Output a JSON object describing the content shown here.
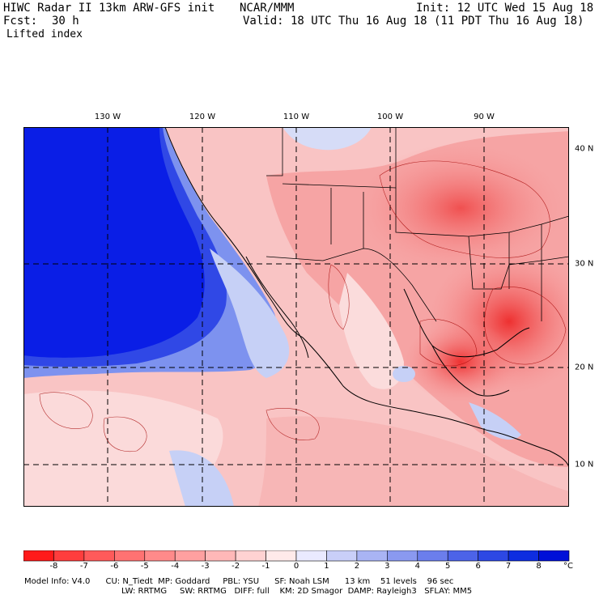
{
  "header": {
    "model_title": "HIWC Radar II 13km ARW-GFS init",
    "org": "NCAR/MMM",
    "init": "Init: 12 UTC Wed 15 Aug 18",
    "fcst_label": "Fcst:",
    "fcst_value": "30 h",
    "valid": "Valid: 18 UTC Thu 16 Aug 18 (11 PDT Thu 16 Aug 18)",
    "field": "Lifted index"
  },
  "map": {
    "lon_labels": [
      "130 W",
      "120 W",
      "110 W",
      "100 W",
      "90 W"
    ],
    "lat_labels": [
      "40 N",
      "30 N",
      "20 N",
      "10 N"
    ],
    "colors": {
      "deep_blue": "#0a1ee6",
      "mid_blue": "#6f86ee",
      "pale_blue": "#c8d2f6",
      "pale_red": "#fbd0d0",
      "mid_red": "#f68a8a",
      "strong_red": "#ef3b3b",
      "border": "#000000"
    }
  },
  "colorbar": {
    "ticks": [
      "-8",
      "-7",
      "-6",
      "-5",
      "-4",
      "-3",
      "-2",
      "-1",
      "0",
      "1",
      "2",
      "3",
      "4",
      "5",
      "6",
      "7",
      "8"
    ],
    "unit": "°C",
    "colors": [
      "#ff1a1a",
      "#ff3d3d",
      "#ff5a5a",
      "#ff7272",
      "#ff8a8a",
      "#ffa0a0",
      "#ffb8b8",
      "#ffd2d2",
      "#ffeaea",
      "#eaeaff",
      "#c9cff8",
      "#a9b4f4",
      "#8a99f0",
      "#6b7eec",
      "#4c63e8",
      "#2d48e4",
      "#0e2de0",
      "#0010d8"
    ]
  },
  "footer": {
    "line1": "Model Info: V4.0      CU: N_Tiedt  MP: Goddard     PBL: YSU      SF: Noah LSM      13 km    51 levels    96 sec",
    "line2": "LW: RRTMG     SW: RRTMG   DIFF: full    KM: 2D Smagor  DAMP: Rayleigh3   SFLAY: MM5"
  }
}
